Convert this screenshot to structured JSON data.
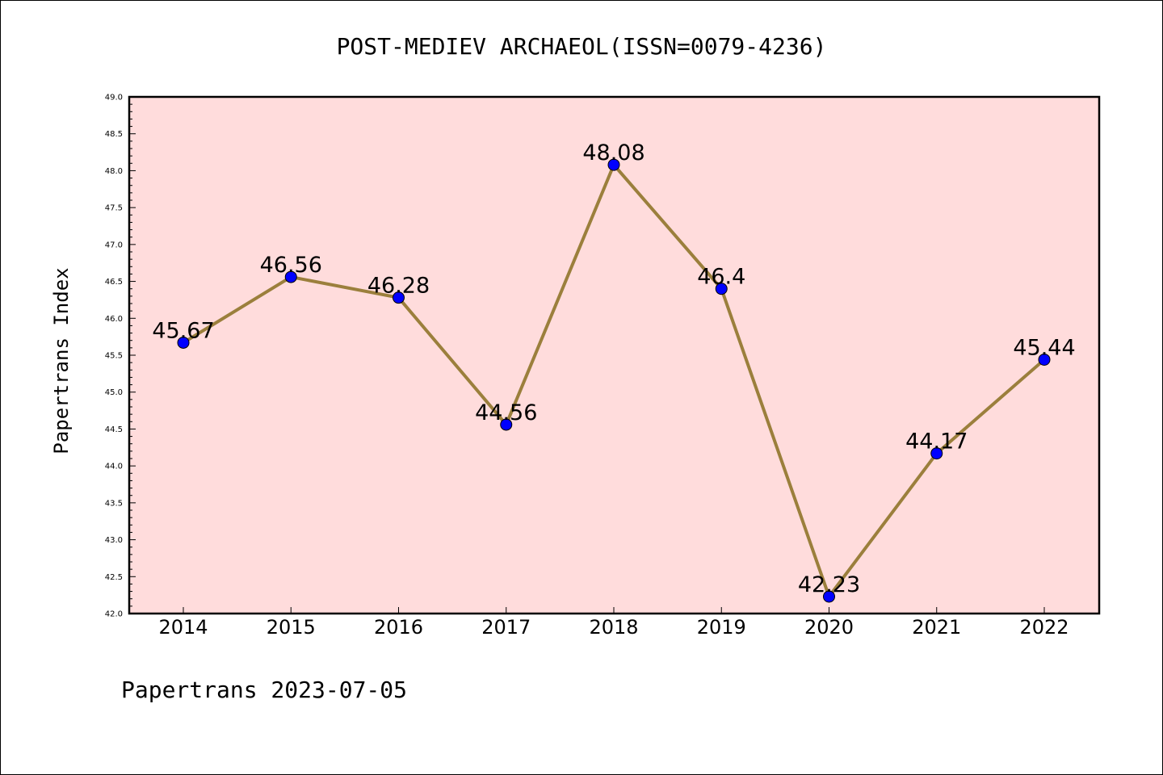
{
  "chart_data": {
    "type": "line",
    "title": "POST-MEDIEV ARCHAEOL(ISSN=0079-4236)",
    "ylabel": "Papertrans Index",
    "xlabel": "",
    "footer": "Papertrans 2023-07-05",
    "categories": [
      "2014",
      "2015",
      "2016",
      "2017",
      "2018",
      "2019",
      "2020",
      "2021",
      "2022"
    ],
    "series": [
      {
        "values": [
          45.67,
          46.56,
          46.28,
          44.56,
          48.08,
          46.4,
          42.23,
          44.17,
          45.44
        ],
        "labels": [
          "45.67",
          "46.56",
          "46.28",
          "44.56",
          "48.08",
          "46.4",
          "42.23",
          "44.17",
          "45.44"
        ],
        "line_color": "#9b7f3c",
        "marker_color": "#0000ff"
      }
    ],
    "ylim": [
      42.0,
      49.0
    ],
    "yticks": [
      "42.0",
      "42.5",
      "43.0",
      "43.5",
      "44.0",
      "44.5",
      "45.0",
      "45.5",
      "46.0",
      "46.5",
      "47.0",
      "47.5",
      "48.0",
      "48.5",
      "49.0"
    ],
    "plot_background": "#ffdcdc",
    "grid": false,
    "legend": "none"
  }
}
